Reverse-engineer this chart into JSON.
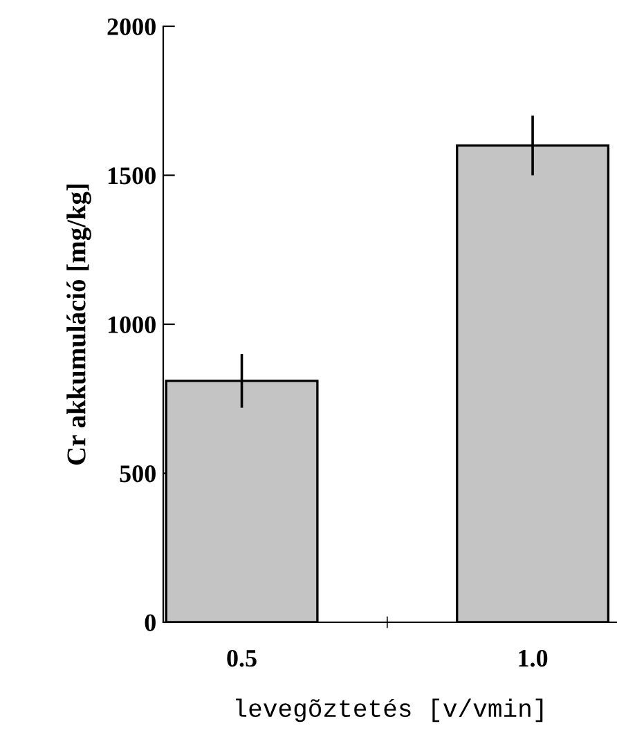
{
  "chart_data": {
    "type": "bar",
    "categories": [
      "0.5",
      "1.0"
    ],
    "values": [
      810,
      1600
    ],
    "errors": [
      90,
      100
    ],
    "color": "#c4c4c4",
    "ylim": [
      0,
      2000
    ],
    "yticks": [
      0,
      500,
      1000,
      1500,
      2000
    ],
    "ylabel": "Cr akkumuláció [mg/kg]",
    "xlabel": "levegõztetés [v/vmin]",
    "grid": false,
    "legend": false
  }
}
